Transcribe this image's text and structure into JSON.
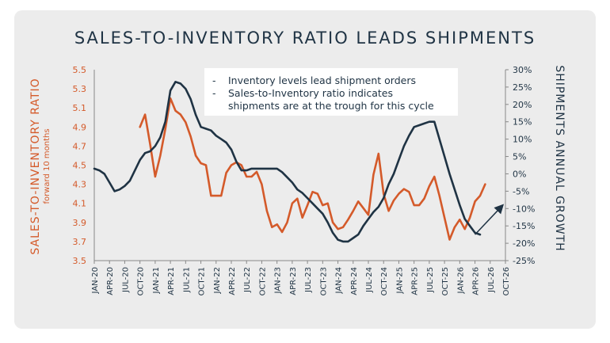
{
  "title": "SALES-TO-INVENTORY RATIO LEADS SHIPMENTS",
  "colors": {
    "sales": "#d45a2a",
    "shipments": "#1f3344",
    "card": "#ececec",
    "legend_bg": "#ffffff"
  },
  "chart_data": {
    "type": "line",
    "title": "SALES-TO-INVENTORY RATIO LEADS SHIPMENTS",
    "left_axis": {
      "label": "SALES-TO-INVENTORY RATIO",
      "sublabel": "forward 10 months",
      "range": [
        3.5,
        5.5
      ],
      "ticks": [
        "5.5",
        "5.3",
        "5.1",
        "4.9",
        "4.7",
        "4.5",
        "4.3",
        "4.1",
        "3.9",
        "3.7",
        "3.5"
      ]
    },
    "right_axis": {
      "label": "SHIPMENTS ANNUAL GROWTH",
      "range": [
        -25,
        30
      ],
      "ticks": [
        "30%",
        "25%",
        "20%",
        "15%",
        "10%",
        "5%",
        "0%",
        "-5%",
        "-10%",
        "-15%",
        "-20%",
        "-25%"
      ]
    },
    "x_ticks": [
      "JAN-20",
      "APR-20",
      "JUL-20",
      "OCT-20",
      "JAN-21",
      "APR-21",
      "JUL-21",
      "OCT-21",
      "JAN-22",
      "APR-22",
      "JUL-22",
      "OCT-22",
      "JAN-23",
      "APR-23",
      "JUL-23",
      "OCT-23",
      "JAN-24",
      "APR-24",
      "JUL-24",
      "OCT-24",
      "JAN-25",
      "APR-25",
      "JUL-25",
      "OCT-25",
      "JAN-26",
      "APR-26",
      "JUL-26",
      "OCT-26"
    ],
    "legend": [
      "Inventory levels lead shipment orders",
      "Sales-to-Inventory ratio indicates",
      "shipments are at the trough for this cycle"
    ],
    "grid": false,
    "series": [
      {
        "axis": "left",
        "start_month": 9,
        "values": [
          4.9,
          5.03,
          4.72,
          4.38,
          4.6,
          4.88,
          5.2,
          5.07,
          5.03,
          4.95,
          4.8,
          4.6,
          4.52,
          4.5,
          4.18,
          4.18,
          4.18,
          4.42,
          4.5,
          4.53,
          4.5,
          4.38,
          4.38,
          4.43,
          4.3,
          4.02,
          3.85,
          3.88,
          3.8,
          3.9,
          4.1,
          4.15,
          3.95,
          4.08,
          4.22,
          4.2,
          4.08,
          4.1,
          3.9,
          3.83,
          3.85,
          3.93,
          4.02,
          4.12,
          4.05,
          3.98,
          4.4,
          4.62,
          4.2,
          4.02,
          4.13,
          4.2,
          4.25,
          4.22,
          4.08,
          4.08,
          4.15,
          4.28,
          4.38,
          4.18,
          3.95,
          3.72,
          3.85,
          3.93,
          3.83,
          3.95,
          4.12,
          4.18,
          4.3
        ]
      },
      {
        "axis": "right",
        "start_month": 0,
        "values": [
          1.5,
          1,
          0,
          -2.5,
          -5,
          -4.5,
          -3.5,
          -2,
          1,
          4,
          6,
          6.5,
          8,
          10.5,
          15,
          24,
          26.5,
          26,
          24.5,
          21.5,
          17,
          13.5,
          13,
          12.5,
          11,
          10,
          9,
          7,
          3.5,
          1,
          1,
          1.5,
          1.5,
          1.5,
          1.5,
          1.5,
          1.5,
          0.5,
          -1,
          -2.5,
          -4.5,
          -5.5,
          -7,
          -8.5,
          -10,
          -11.5,
          -14,
          -17,
          -19,
          -19.5,
          -19.5,
          -18.5,
          -17.5,
          -15,
          -13,
          -11,
          -9.5,
          -7,
          -3,
          0,
          4,
          8,
          11,
          13.5,
          14,
          14.5,
          15,
          15,
          10,
          5,
          0,
          -4.5,
          -9,
          -13,
          -15,
          -17,
          -17.5
        ]
      }
    ],
    "trend_arrow": {
      "from": {
        "month": 75,
        "value": -17.5
      },
      "to": {
        "month": 81,
        "value": -8.5
      }
    }
  }
}
